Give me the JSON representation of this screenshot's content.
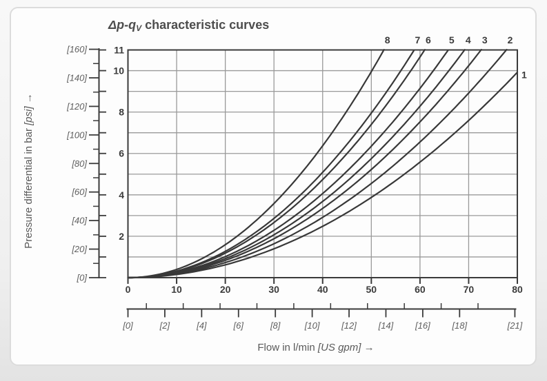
{
  "title": {
    "formula_main": "Δp-q",
    "formula_sub": "V",
    "rest": " characteristic curves"
  },
  "y_axis_title": {
    "prefix": "Pressure differential in bar ",
    "unit": "[psi]",
    "arrow": "→"
  },
  "x_axis_title": {
    "prefix": "Flow in l/min ",
    "unit": "[US gpm]",
    "arrow": "→"
  },
  "chart_data": {
    "type": "line",
    "title": "Δp-qV characteristic curves",
    "xlabel": "Flow in l/min [US gpm]",
    "ylabel": "Pressure differential in bar [psi]",
    "xlim_lmin": [
      0,
      80
    ],
    "ylim_bar": [
      0,
      11
    ],
    "grid": true,
    "legend_position": "curve-end-labels",
    "x_ticks_lmin": [
      0,
      10,
      20,
      30,
      40,
      50,
      60,
      70,
      80
    ],
    "x_gpm_labeled_ticks": [
      0,
      2,
      4,
      6,
      8,
      10,
      12,
      14,
      16,
      18,
      21
    ],
    "x_gpm_minor_ticks": [
      1,
      3,
      5,
      7,
      9,
      11,
      13,
      15,
      17,
      19
    ],
    "y_bar_labeled_ticks": [
      2,
      4,
      6,
      8,
      10,
      11
    ],
    "y_bar_tick_step": 1,
    "y_psi_labeled_ticks": [
      0,
      20,
      40,
      60,
      80,
      100,
      120,
      140,
      160
    ],
    "y_psi_minor_ticks": [
      10,
      30,
      50,
      70,
      90,
      110,
      130,
      150
    ],
    "lmin_per_gpm": 3.7854,
    "bar_per_psi": 0.06895,
    "curve_model": "dp_bar = k * q_lmin^2",
    "series": [
      {
        "name": "1",
        "k": 0.00155,
        "q_end_lmin": 80.0,
        "dp_end_bar": 9.9
      },
      {
        "name": "2",
        "k": 0.00182,
        "q_end_lmin": 77.8,
        "dp_end_bar": 11.0
      },
      {
        "name": "3",
        "k": 0.00209,
        "q_end_lmin": 72.6,
        "dp_end_bar": 11.0
      },
      {
        "name": "4",
        "k": 0.0023,
        "q_end_lmin": 69.2,
        "dp_end_bar": 11.0
      },
      {
        "name": "5",
        "k": 0.00254,
        "q_end_lmin": 65.8,
        "dp_end_bar": 11.0
      },
      {
        "name": "6",
        "k": 0.00296,
        "q_end_lmin": 61.0,
        "dp_end_bar": 11.0
      },
      {
        "name": "7",
        "k": 0.00318,
        "q_end_lmin": 58.8,
        "dp_end_bar": 11.0
      },
      {
        "name": "8",
        "k": 0.00398,
        "q_end_lmin": 52.6,
        "dp_end_bar": 11.0
      }
    ],
    "colors": {
      "curve": "#383838",
      "frame": "#3a3a3a",
      "grid": "#999999",
      "tick": "#3a3a3a",
      "number_text": "#3b3b3b",
      "bracket_text": "#5f5f5f"
    }
  }
}
